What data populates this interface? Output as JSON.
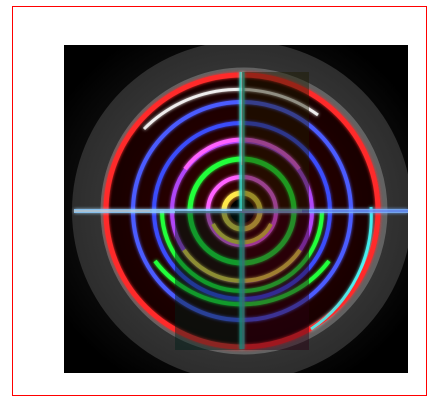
{
  "figure": {
    "frame_color": "#ff0000",
    "background_color": "#000000",
    "outer_disk_color": "#3f3f3f",
    "ring_colors": [
      "#ff2a2a",
      "#4b5cff",
      "#ff62ff",
      "#20ff3b",
      "#ffe84a",
      "#44ffff",
      "#ffffff"
    ]
  }
}
